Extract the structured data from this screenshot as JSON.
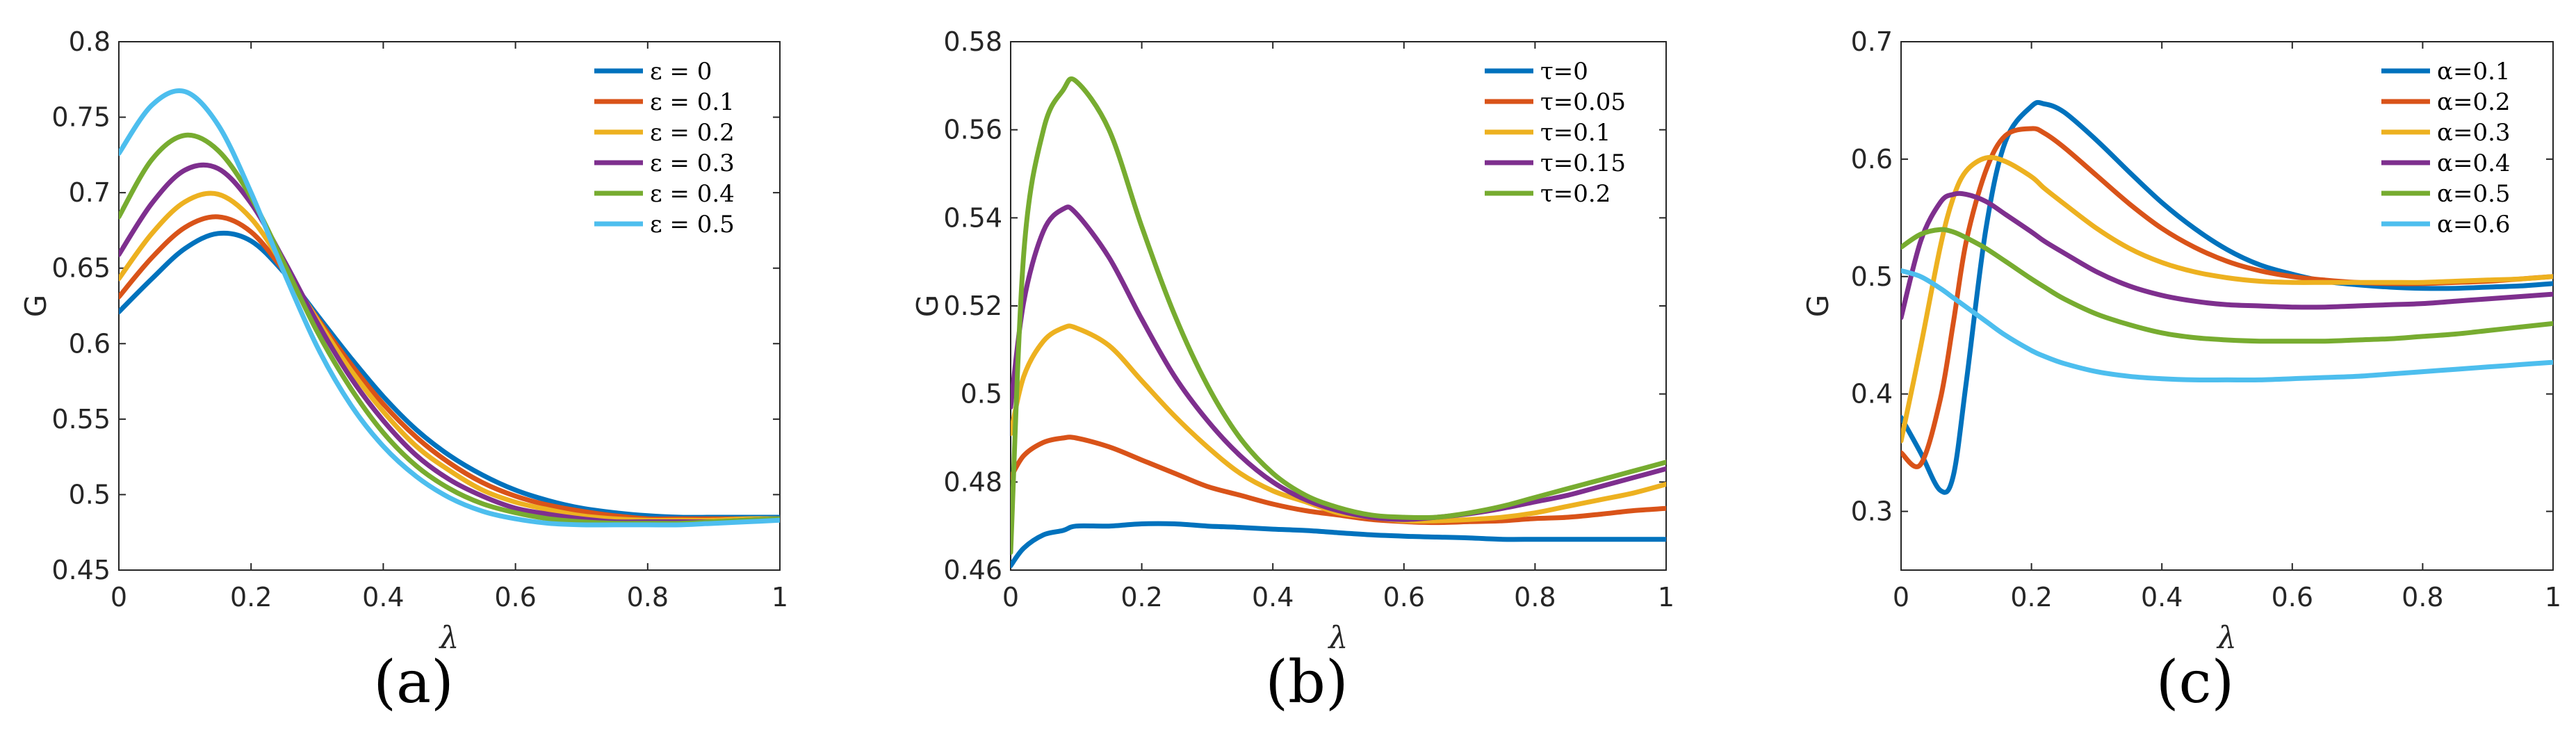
{
  "chart_data": [
    {
      "type": "line",
      "panel": "a",
      "caption": "(a)",
      "xlabel": "λ",
      "ylabel": "G",
      "xlim": [
        0,
        1
      ],
      "ylim": [
        0.45,
        0.8
      ],
      "xticks": [
        0,
        0.2,
        0.4,
        0.6,
        0.8,
        1
      ],
      "xtick_labels": [
        "0",
        "0.2",
        "0.4",
        "0.6",
        "0.8",
        "1"
      ],
      "yticks": [
        0.45,
        0.5,
        0.55,
        0.6,
        0.65,
        0.7,
        0.75,
        0.8
      ],
      "ytick_labels": [
        "0.45",
        "0.5",
        "0.55",
        "0.6",
        "0.65",
        "0.7",
        "0.75",
        "0.8"
      ],
      "legend_position": "top-right",
      "x": [
        0,
        0.05,
        0.1,
        0.15,
        0.2,
        0.25,
        0.3,
        0.35,
        0.4,
        0.45,
        0.5,
        0.55,
        0.6,
        0.65,
        0.7,
        0.75,
        0.8,
        0.85,
        0.9,
        0.95,
        1
      ],
      "series": [
        {
          "name": "ε = 0",
          "color": "#0072BD",
          "values": [
            0.621,
            0.643,
            0.663,
            0.673,
            0.668,
            0.647,
            0.619,
            0.591,
            0.565,
            0.543,
            0.526,
            0.513,
            0.503,
            0.496,
            0.491,
            0.488,
            0.486,
            0.485,
            0.485,
            0.485,
            0.485
          ]
        },
        {
          "name": "ε = 0.1",
          "color": "#D95319",
          "values": [
            0.631,
            0.657,
            0.677,
            0.684,
            0.674,
            0.648,
            0.617,
            0.587,
            0.56,
            0.538,
            0.521,
            0.508,
            0.499,
            0.493,
            0.489,
            0.486,
            0.484,
            0.484,
            0.484,
            0.484,
            0.484
          ]
        },
        {
          "name": "ε = 0.2",
          "color": "#EDB120",
          "values": [
            0.643,
            0.673,
            0.694,
            0.699,
            0.683,
            0.651,
            0.616,
            0.583,
            0.555,
            0.532,
            0.516,
            0.503,
            0.495,
            0.49,
            0.486,
            0.484,
            0.483,
            0.483,
            0.483,
            0.484,
            0.484
          ]
        },
        {
          "name": "ε = 0.3",
          "color": "#7E2F8E",
          "values": [
            0.659,
            0.693,
            0.715,
            0.716,
            0.693,
            0.655,
            0.614,
            0.578,
            0.549,
            0.526,
            0.51,
            0.499,
            0.491,
            0.487,
            0.484,
            0.482,
            0.482,
            0.482,
            0.482,
            0.483,
            0.484
          ]
        },
        {
          "name": "ε = 0.4",
          "color": "#77AC30",
          "values": [
            0.684,
            0.722,
            0.738,
            0.728,
            0.697,
            0.653,
            0.608,
            0.571,
            0.541,
            0.519,
            0.504,
            0.494,
            0.488,
            0.484,
            0.482,
            0.481,
            0.481,
            0.481,
            0.482,
            0.483,
            0.484
          ]
        },
        {
          "name": "ε = 0.5",
          "color": "#4DBEEE",
          "values": [
            0.726,
            0.758,
            0.767,
            0.745,
            0.7,
            0.647,
            0.598,
            0.56,
            0.532,
            0.512,
            0.498,
            0.489,
            0.484,
            0.481,
            0.48,
            0.48,
            0.48,
            0.48,
            0.481,
            0.482,
            0.483
          ]
        }
      ]
    },
    {
      "type": "line",
      "panel": "b",
      "caption": "(b)",
      "xlabel": "λ",
      "ylabel": "G",
      "xlim": [
        0,
        1
      ],
      "ylim": [
        0.46,
        0.58
      ],
      "xticks": [
        0,
        0.2,
        0.4,
        0.6,
        0.8,
        1
      ],
      "xtick_labels": [
        "0",
        "0.2",
        "0.4",
        "0.6",
        "0.8",
        "1"
      ],
      "yticks": [
        0.46,
        0.48,
        0.5,
        0.52,
        0.54,
        0.56,
        0.58
      ],
      "ytick_labels": [
        "0.46",
        "0.48",
        "0.5",
        "0.52",
        "0.54",
        "0.56",
        "0.58"
      ],
      "legend_position": "top-right",
      "x": [
        0,
        0.02,
        0.05,
        0.08,
        0.1,
        0.15,
        0.2,
        0.25,
        0.3,
        0.35,
        0.4,
        0.45,
        0.5,
        0.55,
        0.6,
        0.65,
        0.7,
        0.75,
        0.8,
        0.85,
        0.9,
        0.95,
        1
      ],
      "series": [
        {
          "name": "τ=0",
          "color": "#0072BD",
          "values": [
            0.461,
            0.465,
            0.468,
            0.469,
            0.47,
            0.47,
            0.4705,
            0.4705,
            0.47,
            0.4697,
            0.4693,
            0.469,
            0.4685,
            0.468,
            0.4677,
            0.4675,
            0.4673,
            0.467,
            0.467,
            0.467,
            0.467,
            0.467,
            0.467
          ]
        },
        {
          "name": "τ=0.05",
          "color": "#D95319",
          "values": [
            0.481,
            0.486,
            0.489,
            0.49,
            0.49,
            0.488,
            0.485,
            0.482,
            0.479,
            0.477,
            0.475,
            0.4735,
            0.4725,
            0.4715,
            0.471,
            0.4708,
            0.471,
            0.4712,
            0.4717,
            0.472,
            0.4727,
            0.4735,
            0.474
          ]
        },
        {
          "name": "τ=0.1",
          "color": "#EDB120",
          "values": [
            0.491,
            0.504,
            0.512,
            0.515,
            0.515,
            0.511,
            0.503,
            0.495,
            0.488,
            0.482,
            0.478,
            0.4755,
            0.473,
            0.472,
            0.4712,
            0.4712,
            0.4715,
            0.472,
            0.473,
            0.4745,
            0.476,
            0.4775,
            0.4795
          ]
        },
        {
          "name": "τ=0.15",
          "color": "#7E2F8E",
          "values": [
            0.497,
            0.521,
            0.537,
            0.542,
            0.541,
            0.531,
            0.517,
            0.504,
            0.494,
            0.486,
            0.48,
            0.476,
            0.4735,
            0.472,
            0.4715,
            0.472,
            0.4728,
            0.474,
            0.4755,
            0.477,
            0.479,
            0.481,
            0.483
          ]
        },
        {
          "name": "τ=0.2",
          "color": "#77AC30",
          "values": [
            0.464,
            0.532,
            0.56,
            0.569,
            0.571,
            0.56,
            0.538,
            0.518,
            0.502,
            0.49,
            0.482,
            0.477,
            0.4742,
            0.4725,
            0.472,
            0.472,
            0.473,
            0.4745,
            0.4765,
            0.4785,
            0.4805,
            0.4825,
            0.4845
          ]
        }
      ]
    },
    {
      "type": "line",
      "panel": "c",
      "caption": "(c)",
      "xlabel": "λ",
      "ylabel": "G",
      "xlim": [
        0,
        1
      ],
      "ylim": [
        0.25,
        0.7
      ],
      "xticks": [
        0,
        0.2,
        0.4,
        0.6,
        0.8,
        1
      ],
      "xtick_labels": [
        "0",
        "0.2",
        "0.4",
        "0.6",
        "0.8",
        "1"
      ],
      "yticks": [
        0.3,
        0.4,
        0.5,
        0.6,
        0.7
      ],
      "ytick_labels": [
        "0.3",
        "0.4",
        "0.5",
        "0.6",
        "0.7"
      ],
      "legend_position": "top-right",
      "x": [
        0,
        0.03,
        0.06,
        0.08,
        0.1,
        0.13,
        0.16,
        0.2,
        0.22,
        0.25,
        0.3,
        0.35,
        0.4,
        0.45,
        0.5,
        0.55,
        0.6,
        0.65,
        0.7,
        0.75,
        0.8,
        0.85,
        0.9,
        0.95,
        1
      ],
      "series": [
        {
          "name": "α=0.1",
          "color": "#0072BD",
          "values": [
            0.38,
            0.35,
            0.318,
            0.33,
            0.41,
            0.54,
            0.615,
            0.645,
            0.647,
            0.64,
            0.616,
            0.589,
            0.563,
            0.541,
            0.523,
            0.51,
            0.502,
            0.496,
            0.493,
            0.491,
            0.49,
            0.49,
            0.491,
            0.492,
            0.494
          ]
        },
        {
          "name": "α=0.2",
          "color": "#D95319",
          "values": [
            0.35,
            0.34,
            0.395,
            0.46,
            0.53,
            0.59,
            0.62,
            0.626,
            0.622,
            0.61,
            0.586,
            0.562,
            0.541,
            0.525,
            0.513,
            0.505,
            0.5,
            0.497,
            0.495,
            0.494,
            0.494,
            0.495,
            0.496,
            0.498,
            0.5
          ]
        },
        {
          "name": "α=0.3",
          "color": "#EDB120",
          "values": [
            0.36,
            0.44,
            0.525,
            0.567,
            0.59,
            0.601,
            0.598,
            0.585,
            0.575,
            0.562,
            0.541,
            0.524,
            0.512,
            0.504,
            0.499,
            0.496,
            0.495,
            0.495,
            0.495,
            0.495,
            0.495,
            0.496,
            0.497,
            0.498,
            0.5
          ]
        },
        {
          "name": "α=0.4",
          "color": "#7E2F8E",
          "values": [
            0.465,
            0.53,
            0.563,
            0.57,
            0.57,
            0.564,
            0.553,
            0.538,
            0.53,
            0.52,
            0.504,
            0.492,
            0.484,
            0.479,
            0.476,
            0.475,
            0.474,
            0.474,
            0.475,
            0.476,
            0.477,
            0.479,
            0.481,
            0.483,
            0.485
          ]
        },
        {
          "name": "α=0.5",
          "color": "#77AC30",
          "values": [
            0.525,
            0.536,
            0.54,
            0.538,
            0.533,
            0.524,
            0.513,
            0.498,
            0.491,
            0.481,
            0.468,
            0.459,
            0.452,
            0.448,
            0.446,
            0.445,
            0.445,
            0.445,
            0.446,
            0.447,
            0.449,
            0.451,
            0.454,
            0.457,
            0.46
          ]
        },
        {
          "name": "α=0.6",
          "color": "#4DBEEE",
          "values": [
            0.505,
            0.5,
            0.49,
            0.482,
            0.474,
            0.462,
            0.45,
            0.437,
            0.432,
            0.426,
            0.419,
            0.415,
            0.413,
            0.412,
            0.412,
            0.412,
            0.413,
            0.414,
            0.415,
            0.417,
            0.419,
            0.421,
            0.423,
            0.425,
            0.427
          ]
        }
      ]
    }
  ]
}
